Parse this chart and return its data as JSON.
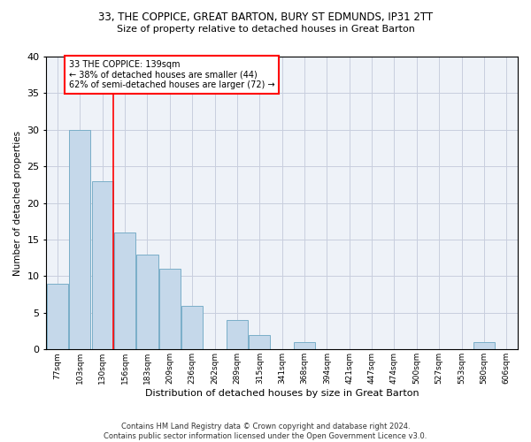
{
  "title_line1": "33, THE COPPICE, GREAT BARTON, BURY ST EDMUNDS, IP31 2TT",
  "title_line2": "Size of property relative to detached houses in Great Barton",
  "xlabel": "Distribution of detached houses by size in Great Barton",
  "ylabel": "Number of detached properties",
  "footnote1": "Contains HM Land Registry data © Crown copyright and database right 2024.",
  "footnote2": "Contains public sector information licensed under the Open Government Licence v3.0.",
  "bin_labels": [
    "77sqm",
    "103sqm",
    "130sqm",
    "156sqm",
    "183sqm",
    "209sqm",
    "236sqm",
    "262sqm",
    "289sqm",
    "315sqm",
    "341sqm",
    "368sqm",
    "394sqm",
    "421sqm",
    "447sqm",
    "474sqm",
    "500sqm",
    "527sqm",
    "553sqm",
    "580sqm",
    "606sqm"
  ],
  "bar_values": [
    9,
    30,
    23,
    16,
    13,
    11,
    6,
    0,
    4,
    2,
    0,
    1,
    0,
    0,
    0,
    0,
    0,
    0,
    0,
    1,
    0
  ],
  "bar_color": "#c5d8ea",
  "bar_edgecolor": "#7aaec8",
  "ylim": [
    0,
    40
  ],
  "yticks": [
    0,
    5,
    10,
    15,
    20,
    25,
    30,
    35,
    40
  ],
  "annotation_line1": "33 THE COPPICE: 139sqm",
  "annotation_line2": "← 38% of detached houses are smaller (44)",
  "annotation_line3": "62% of semi-detached houses are larger (72) →",
  "vline_x_index": 2.5,
  "box_color": "red",
  "background_color": "#eef2f8",
  "grid_color": "#c8cede"
}
